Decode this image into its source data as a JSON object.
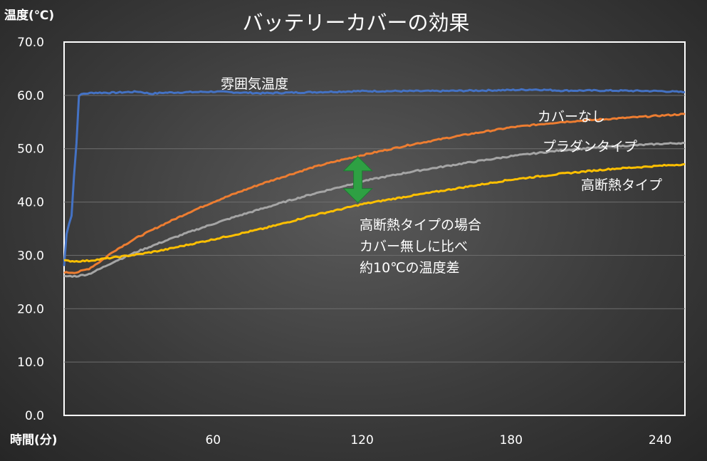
{
  "chart_data": {
    "type": "line",
    "title": "バッテリーカバーの効果",
    "ylabel": "温度(℃)",
    "xlabel": "時間(分)",
    "xlim": [
      0,
      250
    ],
    "ylim": [
      0,
      70
    ],
    "yticks": [
      "0.0",
      "10.0",
      "20.0",
      "30.0",
      "40.0",
      "50.0",
      "60.0",
      "70.0"
    ],
    "xticks": [
      {
        "value": 60,
        "label": "60"
      },
      {
        "value": 120,
        "label": "120"
      },
      {
        "value": 180,
        "label": "180"
      },
      {
        "value": 240,
        "label": "240"
      }
    ],
    "grid": true,
    "series": [
      {
        "name": "雰囲気温度",
        "color": "#4472C4",
        "x": [
          0,
          1,
          2,
          3,
          4,
          5,
          6,
          8,
          12,
          20,
          30,
          35,
          40,
          60,
          80,
          100,
          120,
          150,
          180,
          190,
          200,
          220,
          240,
          250
        ],
        "y": [
          28,
          34,
          36,
          37.5,
          45,
          51,
          60,
          60.3,
          60.5,
          60.5,
          60.7,
          60.3,
          60.5,
          60.7,
          60.4,
          60.6,
          60.8,
          60.8,
          61,
          61.1,
          60.9,
          60.9,
          60.8,
          60.6
        ]
      },
      {
        "name": "カバーなし",
        "color": "#ED7D31",
        "x": [
          0,
          5,
          10,
          15,
          20,
          30,
          40,
          50,
          60,
          70,
          80,
          90,
          100,
          110,
          120,
          140,
          160,
          180,
          200,
          220,
          240,
          250
        ],
        "y": [
          26.8,
          26.8,
          27.5,
          29,
          30.8,
          33.5,
          35.8,
          38,
          40,
          41.8,
          43.5,
          45,
          46.5,
          47.7,
          48.8,
          50.8,
          52.5,
          54,
          55,
          55.6,
          56.2,
          56.5
        ]
      },
      {
        "name": "プラダンタイプ",
        "color": "#A5A5A5",
        "x": [
          0,
          5,
          10,
          15,
          20,
          30,
          40,
          50,
          60,
          70,
          80,
          90,
          100,
          110,
          120,
          140,
          160,
          180,
          200,
          220,
          240,
          250
        ],
        "y": [
          26.1,
          26.1,
          26.5,
          27.6,
          28.8,
          30.8,
          32.6,
          34.3,
          35.9,
          37.4,
          38.8,
          40.2,
          41.5,
          42.7,
          43.9,
          45.7,
          47.2,
          48.6,
          49.7,
          50.4,
          50.9,
          51.1
        ]
      },
      {
        "name": "高断熱タイプ",
        "color": "#FFC000",
        "x": [
          0,
          5,
          10,
          15,
          20,
          30,
          40,
          50,
          60,
          70,
          80,
          90,
          100,
          110,
          120,
          140,
          160,
          180,
          200,
          220,
          240,
          250
        ],
        "y": [
          29,
          28.9,
          29,
          29.3,
          29.6,
          30.2,
          31,
          32,
          33,
          34,
          35,
          36.2,
          37.5,
          38.5,
          39.6,
          41.2,
          42.7,
          44.2,
          45.3,
          46.2,
          46.8,
          47.1
        ]
      }
    ],
    "annotation": {
      "lines": [
        "高断熱タイプの場合",
        "カバー無しに比べ",
        "約10℃の温度差"
      ],
      "arrow_x": 120,
      "arrow_from": 48.8,
      "arrow_to": 39.6,
      "arrow_color": "#2EA043"
    }
  }
}
